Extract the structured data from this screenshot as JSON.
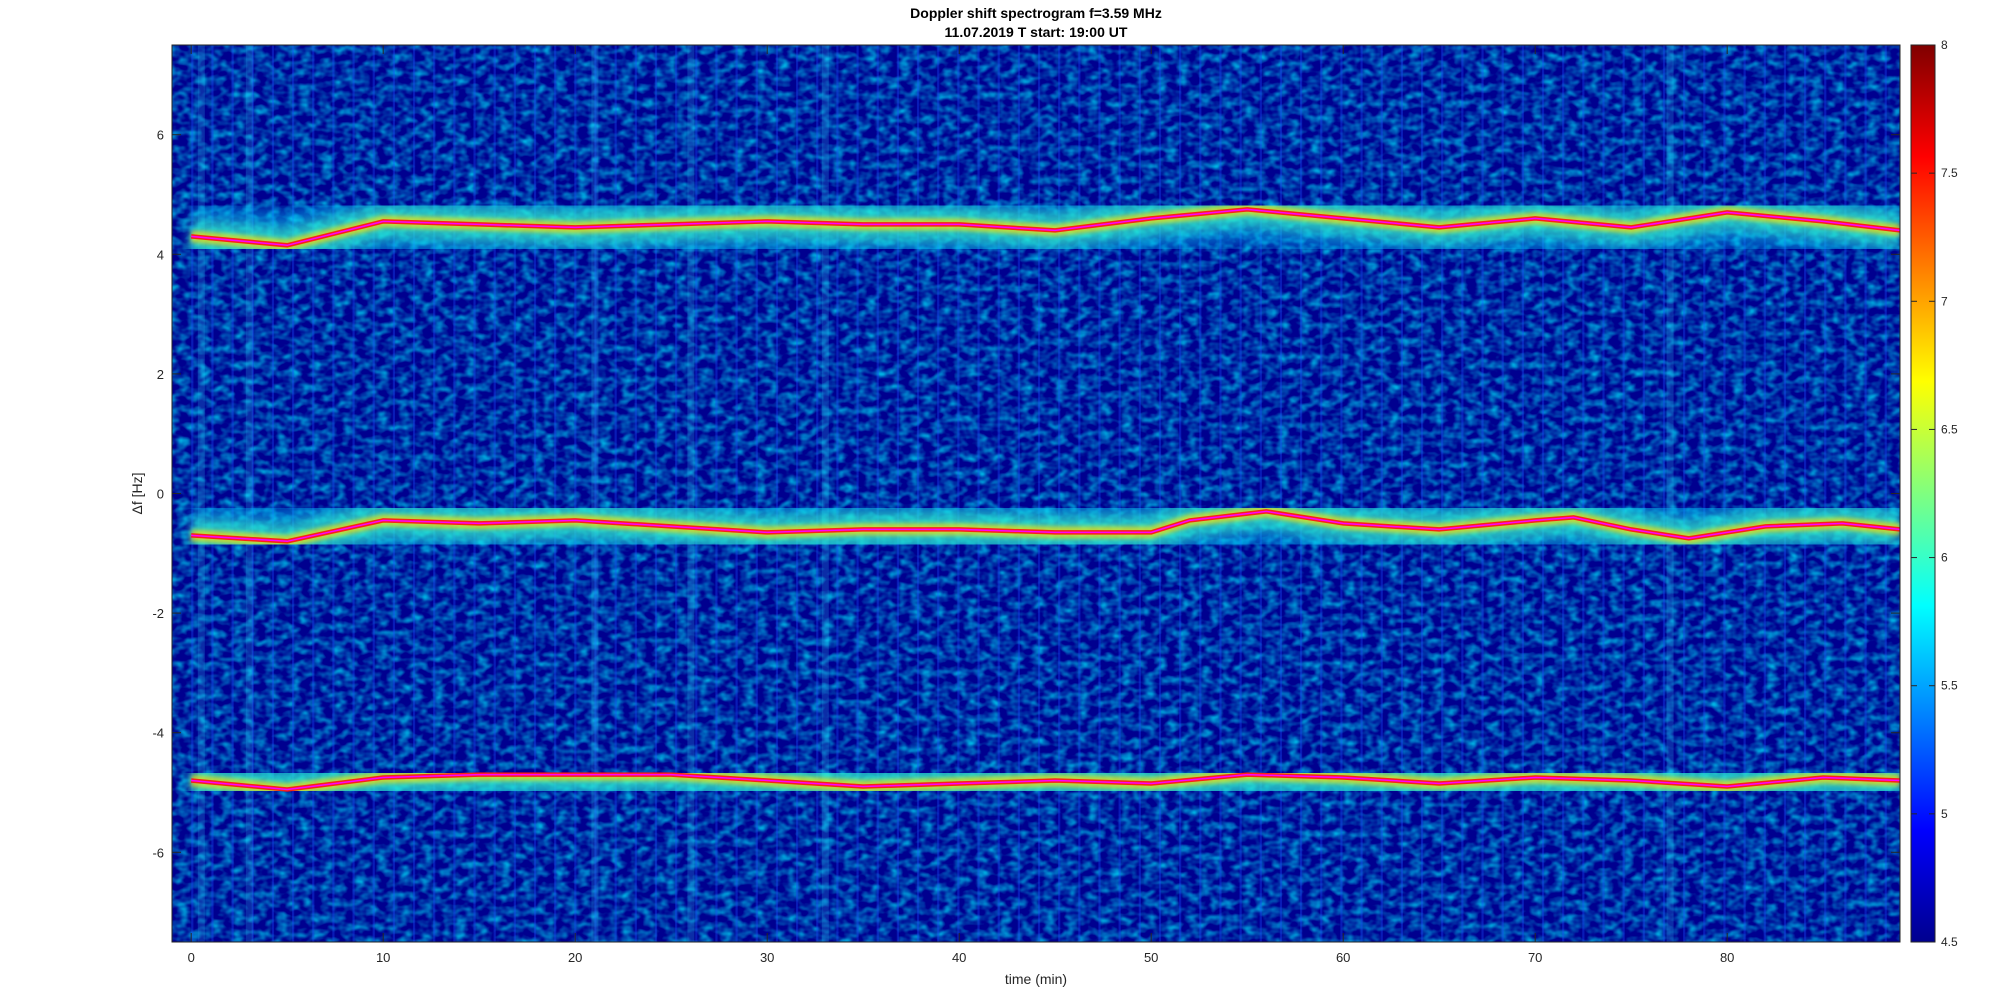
{
  "chart_data": {
    "type": "heatmap",
    "title": "Doppler shift spectrogram f=3.59 MHz",
    "subtitle": "11.07.2019    T start: 19:00 UT",
    "xlabel": "time (min)",
    "ylabel": "Δf [Hz]",
    "xlim": [
      -1,
      89
    ],
    "ylim": [
      -7.5,
      7.5
    ],
    "xticks": [
      0,
      10,
      20,
      30,
      40,
      50,
      60,
      70,
      80
    ],
    "yticks": [
      -6,
      -4,
      -2,
      0,
      2,
      4,
      6
    ],
    "colormap": "jet",
    "clim": [
      4.5,
      8
    ],
    "colorbar_ticks": [
      4.5,
      5,
      5.5,
      6,
      6.5,
      7,
      7.5,
      8
    ],
    "colors": {
      "background": "#00008f",
      "trace": "#ff00ff"
    },
    "traces": [
      {
        "x": [
          0,
          5,
          10,
          15,
          20,
          25,
          30,
          35,
          40,
          45,
          50,
          55,
          60,
          65,
          70,
          75,
          80,
          85,
          89
        ],
        "y": [
          4.3,
          4.15,
          4.55,
          4.5,
          4.45,
          4.5,
          4.55,
          4.5,
          4.5,
          4.4,
          4.6,
          4.75,
          4.6,
          4.45,
          4.6,
          4.45,
          4.7,
          4.55,
          4.4
        ]
      },
      {
        "x": [
          0,
          5,
          10,
          15,
          20,
          25,
          30,
          35,
          40,
          45,
          50,
          52,
          56,
          60,
          65,
          70,
          72,
          75,
          78,
          82,
          86,
          89
        ],
        "y": [
          -0.7,
          -0.8,
          -0.45,
          -0.5,
          -0.45,
          -0.55,
          -0.65,
          -0.6,
          -0.6,
          -0.65,
          -0.65,
          -0.45,
          -0.3,
          -0.5,
          -0.6,
          -0.45,
          -0.4,
          -0.6,
          -0.75,
          -0.55,
          -0.5,
          -0.6
        ]
      },
      {
        "x": [
          0,
          5,
          10,
          15,
          20,
          25,
          30,
          35,
          40,
          45,
          50,
          55,
          60,
          65,
          70,
          75,
          80,
          85,
          89
        ],
        "y": [
          -4.8,
          -4.95,
          -4.75,
          -4.7,
          -4.7,
          -4.7,
          -4.8,
          -4.9,
          -4.85,
          -4.8,
          -4.85,
          -4.7,
          -4.75,
          -4.85,
          -4.75,
          -4.8,
          -4.9,
          -4.75,
          -4.8
        ]
      }
    ]
  }
}
